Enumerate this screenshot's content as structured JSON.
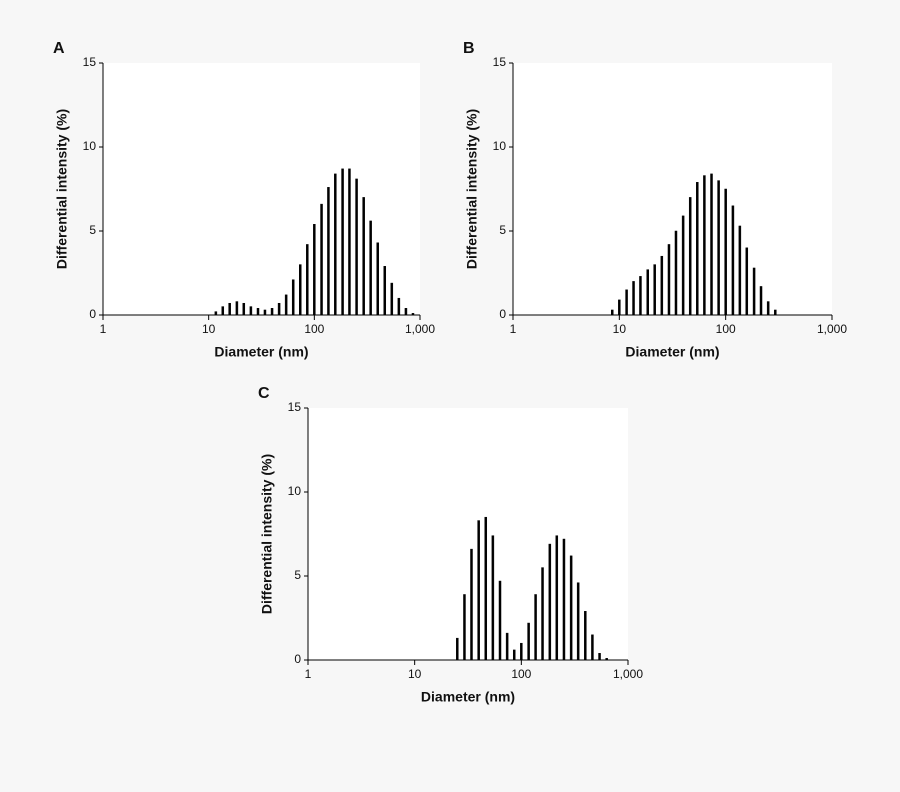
{
  "chart_data": [
    {
      "type": "bar",
      "label": "A",
      "xlabel": "Diameter (nm)",
      "ylabel": "Differential intensity (%)",
      "log_x": true,
      "color": "#000000",
      "xlim": [
        1,
        1000
      ],
      "xticks": [
        1,
        10,
        100,
        {
          "value": 1000,
          "label": "1,000"
        }
      ],
      "ylim": [
        0,
        15
      ],
      "yticks": [
        0,
        5,
        10,
        15
      ],
      "x": [
        1,
        1.17,
        1.36,
        1.58,
        1.85,
        2.15,
        2.51,
        2.93,
        3.41,
        3.98,
        4.64,
        5.41,
        6.31,
        7.36,
        8.58,
        10,
        11.7,
        13.6,
        15.8,
        18.5,
        21.5,
        25.1,
        29.3,
        34.1,
        39.8,
        46.4,
        54.1,
        63.1,
        73.6,
        85.8,
        100,
        117,
        136,
        158,
        185,
        215,
        251,
        293,
        341,
        398,
        464,
        541,
        631,
        736,
        858,
        1000
      ],
      "values": [
        0,
        0,
        0,
        0,
        0,
        0,
        0,
        0,
        0,
        0,
        0,
        0,
        0,
        0,
        0,
        0,
        0.2,
        0.5,
        0.7,
        0.8,
        0.7,
        0.5,
        0.4,
        0.3,
        0.4,
        0.7,
        1.2,
        2.1,
        3.0,
        4.2,
        5.4,
        6.6,
        7.6,
        8.4,
        8.7,
        8.7,
        8.1,
        7.0,
        5.6,
        4.3,
        2.9,
        1.9,
        1.0,
        0.4,
        0.1,
        0
      ]
    },
    {
      "type": "bar",
      "label": "B",
      "xlabel": "Diameter (nm)",
      "ylabel": "Differential intensity (%)",
      "log_x": true,
      "color": "#000000",
      "xlim": [
        1,
        1000
      ],
      "xticks": [
        1,
        10,
        100,
        {
          "value": 1000,
          "label": "1,000"
        }
      ],
      "ylim": [
        0,
        15
      ],
      "yticks": [
        0,
        5,
        10,
        15
      ],
      "x": [
        1,
        1.17,
        1.36,
        1.58,
        1.85,
        2.15,
        2.51,
        2.93,
        3.41,
        3.98,
        4.64,
        5.41,
        6.31,
        7.36,
        8.58,
        10,
        11.7,
        13.6,
        15.8,
        18.5,
        21.5,
        25.1,
        29.3,
        34.1,
        39.8,
        46.4,
        54.1,
        63.1,
        73.6,
        85.8,
        100,
        117,
        136,
        158,
        185,
        215,
        251,
        293,
        341,
        398,
        464,
        541,
        631,
        736,
        858,
        1000
      ],
      "values": [
        0,
        0,
        0,
        0,
        0,
        0,
        0,
        0,
        0,
        0,
        0,
        0,
        0,
        0,
        0.3,
        0.9,
        1.5,
        2.0,
        2.3,
        2.7,
        3.0,
        3.5,
        4.2,
        5.0,
        5.9,
        7.0,
        7.9,
        8.3,
        8.4,
        8.0,
        7.5,
        6.5,
        5.3,
        4.0,
        2.8,
        1.7,
        0.8,
        0.3,
        0,
        0,
        0,
        0,
        0,
        0,
        0,
        0
      ]
    },
    {
      "type": "bar",
      "label": "C",
      "xlabel": "Diameter (nm)",
      "ylabel": "Differential intensity (%)",
      "log_x": true,
      "color": "#000000",
      "xlim": [
        1,
        1000
      ],
      "xticks": [
        1,
        10,
        100,
        {
          "value": 1000,
          "label": "1,000"
        }
      ],
      "ylim": [
        0,
        15
      ],
      "yticks": [
        0,
        5,
        10,
        15
      ],
      "x": [
        1,
        1.17,
        1.36,
        1.58,
        1.85,
        2.15,
        2.51,
        2.93,
        3.41,
        3.98,
        4.64,
        5.41,
        6.31,
        7.36,
        8.58,
        10,
        11.7,
        13.6,
        15.8,
        18.5,
        21.5,
        25.1,
        29.3,
        34.1,
        39.8,
        46.4,
        54.1,
        63.1,
        73.6,
        85.8,
        100,
        117,
        136,
        158,
        185,
        215,
        251,
        293,
        341,
        398,
        464,
        541,
        631,
        736,
        858,
        1000
      ],
      "values": [
        0,
        0,
        0,
        0,
        0,
        0,
        0,
        0,
        0,
        0,
        0,
        0,
        0,
        0,
        0,
        0,
        0,
        0,
        0,
        0,
        0,
        1.3,
        3.9,
        6.6,
        8.3,
        8.5,
        7.4,
        4.7,
        1.6,
        0.6,
        1.0,
        2.2,
        3.9,
        5.5,
        6.9,
        7.4,
        7.2,
        6.2,
        4.6,
        2.9,
        1.5,
        0.4,
        0.1,
        0,
        0,
        0
      ]
    }
  ]
}
